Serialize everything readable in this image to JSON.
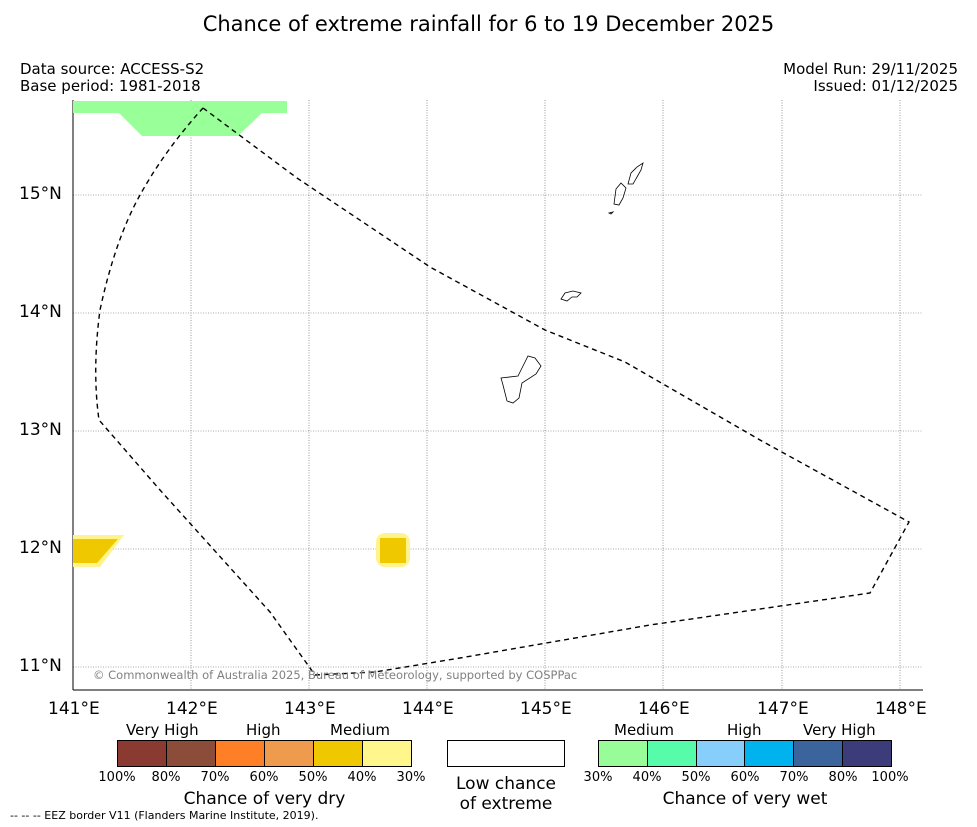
{
  "title": "Chance of extreme rainfall for 6 to 19 December 2025",
  "meta": {
    "data_source": "Data source: ACCESS-S2",
    "base_period": "Base period: 1981-2018",
    "model_run": "Model Run: 29/11/2025",
    "issued": "Issued: 01/12/2025"
  },
  "map": {
    "lon_labels": [
      "141°E",
      "142°E",
      "143°E",
      "144°E",
      "145°E",
      "146°E",
      "147°E",
      "148°E"
    ],
    "lat_labels": [
      "15°N",
      "14°N",
      "13°N",
      "12°N",
      "11°N"
    ],
    "copyright": "© Commonwealth of Australia 2025, Bureau of Meteorology, supported by COSPPac",
    "colors": {
      "medium_wet": "#99ff99",
      "medium_dry": "#f0c800",
      "medium_dry_light": "#fff38c"
    }
  },
  "legend": {
    "dry": {
      "headers": [
        "Very High",
        "High",
        "Medium"
      ],
      "ticks": [
        "100%",
        "80%",
        "70%",
        "60%",
        "50%",
        "40%",
        "30%"
      ],
      "colors": [
        "#8b3a32",
        "#8c4c3a",
        "#fe7f26",
        "#ee9b4e",
        "#f0c800",
        "#fff68c"
      ],
      "title": "Chance of very dry"
    },
    "low": {
      "line1": "Low chance",
      "line2": "of extreme"
    },
    "wet": {
      "headers": [
        "Medium",
        "High",
        "Very High"
      ],
      "ticks": [
        "30%",
        "40%",
        "50%",
        "60%",
        "70%",
        "80%",
        "100%"
      ],
      "colors": [
        "#98fc98",
        "#56fcaa",
        "#87cefa",
        "#00b3ef",
        "#3b649c",
        "#3c3c7a"
      ],
      "title": "Chance of very wet"
    }
  },
  "footnote": "--  --  -- EEZ border V11 (Flanders Marine Institute, 2019)."
}
